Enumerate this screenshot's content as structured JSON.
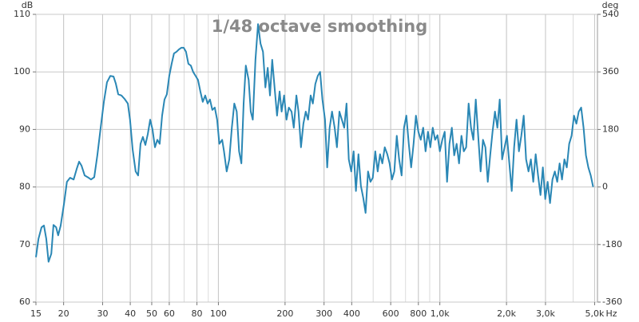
{
  "chart_data": {
    "type": "line",
    "title": "1/48 octave smoothing",
    "y_label": "dB",
    "y2_label": "deg",
    "x_unit": "Hz",
    "log_x": true,
    "grid": true,
    "color": "#2a87b5",
    "xlim": [
      15,
      5150
    ],
    "xticks": [
      15,
      20,
      30,
      40,
      50,
      60,
      80,
      100,
      200,
      300,
      400,
      600,
      800,
      {
        "value": 1000,
        "label": "1,0k"
      },
      {
        "value": 2000,
        "label": "2,0k"
      },
      {
        "value": 3000,
        "label": "3,0k"
      },
      {
        "value": 5000,
        "label": "5,0k"
      }
    ],
    "ylim": [
      60,
      110
    ],
    "yticks": [
      60,
      70,
      80,
      90,
      100,
      110
    ],
    "y2lim": [
      -360,
      540
    ],
    "y2ticks": [
      -360,
      -180,
      0,
      180,
      360,
      540
    ],
    "x": [
      15.0,
      15.4,
      15.9,
      16.3,
      16.7,
      17.1,
      17.6,
      18.0,
      18.5,
      18.9,
      19.4,
      20.1,
      20.7,
      21.4,
      22.2,
      22.9,
      23.5,
      24.1,
      24.9,
      25.7,
      26.6,
      27.5,
      28.4,
      29.4,
      30.4,
      31.4,
      32.5,
      33.6,
      34.4,
      35.3,
      36.5,
      37.7,
      39.0,
      39.9,
      41.0,
      42.3,
      43.4,
      44.5,
      45.6,
      46.8,
      48.0,
      49.2,
      50.4,
      51.7,
      53.0,
      54.3,
      55.7,
      57.1,
      58.5,
      60.0,
      61.5,
      63.0,
      64.7,
      66.3,
      68.0,
      69.7,
      71.4,
      73.2,
      75.1,
      76.9,
      78.9,
      80.9,
      82.9,
      85.0,
      87.2,
      89.4,
      91.6,
      93.9,
      96.3,
      98.7,
      101,
      104,
      106,
      109,
      112,
      115,
      118,
      121,
      124,
      127,
      130,
      133,
      137,
      140,
      143,
      147,
      151,
      155,
      159,
      163,
      167,
      171,
      175,
      180,
      184,
      189,
      193,
      198,
      203,
      208,
      214,
      219,
      225,
      230,
      236,
      242,
      248,
      254,
      261,
      267,
      274,
      281,
      288,
      295,
      303,
      310,
      318,
      326,
      335,
      343,
      352,
      361,
      370,
      379,
      388,
      398,
      408,
      418,
      429,
      440,
      451,
      462,
      474,
      486,
      498,
      511,
      524,
      537,
      550,
      564,
      579,
      593,
      608,
      623,
      639,
      655,
      672,
      689,
      706,
      724,
      742,
      761,
      780,
      800,
      820,
      841,
      862,
      884,
      906,
      929,
      952,
      976,
      1000,
      1026,
      1052,
      1078,
      1105,
      1133,
      1161,
      1191,
      1221,
      1252,
      1283,
      1315,
      1349,
      1383,
      1417,
      1453,
      1490,
      1528,
      1566,
      1606,
      1646,
      1688,
      1730,
      1774,
      1819,
      1864,
      1911,
      1960,
      2009,
      2060,
      2112,
      2165,
      2220,
      2276,
      2333,
      2392,
      2452,
      2514,
      2577,
      2642,
      2709,
      2777,
      2848,
      2919,
      2993,
      3068,
      3145,
      3225,
      3306,
      3390,
      3475,
      3562,
      3652,
      3744,
      3838,
      3935,
      4035,
      4136,
      4240,
      4347,
      4457,
      4569,
      4684,
      4803,
      4924
    ],
    "values": [
      67.8,
      71,
      73,
      73.3,
      71,
      67,
      68.4,
      73.4,
      73,
      71.6,
      73.3,
      77.2,
      80.9,
      81.6,
      81.3,
      83.1,
      84.4,
      83.7,
      82,
      81.7,
      81.3,
      81.7,
      85.5,
      90.3,
      94.8,
      98.2,
      99.3,
      99.2,
      98,
      96.1,
      95.9,
      95.3,
      94.5,
      91.7,
      86.5,
      82.7,
      82,
      87.5,
      88.7,
      87.3,
      89.2,
      91.7,
      90,
      86.9,
      88.2,
      87.5,
      92.4,
      95.2,
      96.1,
      99.3,
      101.4,
      103.2,
      103.5,
      103.9,
      104.2,
      104.2,
      103.5,
      101.4,
      101.1,
      100,
      99.3,
      98.6,
      96.6,
      94.8,
      95.9,
      94.5,
      95.2,
      93.4,
      93.8,
      91.7,
      87.5,
      88.2,
      86.2,
      82.7,
      84.8,
      90.3,
      94.5,
      93.1,
      86.2,
      84.1,
      94.5,
      101.1,
      98.6,
      93.1,
      91.7,
      102.1,
      108.3,
      104.9,
      103.5,
      97.3,
      100.7,
      95.9,
      102.1,
      96.6,
      92.4,
      96.6,
      93.1,
      95.9,
      91.7,
      93.8,
      93.1,
      90.3,
      95.9,
      93.1,
      86.9,
      91,
      93.1,
      91.7,
      95.9,
      94.5,
      97.9,
      99.3,
      100,
      95.2,
      91.7,
      83.4,
      90.3,
      93.1,
      90.3,
      86.9,
      93.1,
      91.7,
      90.3,
      94.5,
      84.8,
      82.7,
      86.2,
      79.3,
      85.7,
      80.2,
      78.1,
      75.5,
      82.7,
      80.9,
      81.6,
      86.2,
      82.7,
      85.7,
      84.1,
      86.9,
      85.7,
      84.1,
      81.3,
      82.7,
      88.9,
      84.8,
      82,
      90.3,
      92.4,
      87.5,
      83.4,
      87.5,
      92.4,
      89.6,
      88.2,
      90.3,
      86.2,
      89.6,
      86.9,
      90.3,
      88.2,
      89,
      86.2,
      88.2,
      89.6,
      80.9,
      87.5,
      90.3,
      85.5,
      87.5,
      84.1,
      88.9,
      86.2,
      86.9,
      94.5,
      90.3,
      88.2,
      95.2,
      88.9,
      82.7,
      88.2,
      86.9,
      80.9,
      85.5,
      89.6,
      93.1,
      90.3,
      95.2,
      84.8,
      86.9,
      88.9,
      84.1,
      79.3,
      86.9,
      91.7,
      86.2,
      88.9,
      92.4,
      84.8,
      82.7,
      84.8,
      80.9,
      85.7,
      82,
      78.6,
      83.4,
      77.9,
      80.9,
      77.2,
      81.3,
      82.7,
      80.9,
      84.1,
      81.3,
      84.8,
      83.4,
      87.5,
      88.9,
      92.4,
      91,
      93.1,
      93.8,
      90.3,
      85.5,
      83.4,
      82,
      80
    ]
  }
}
